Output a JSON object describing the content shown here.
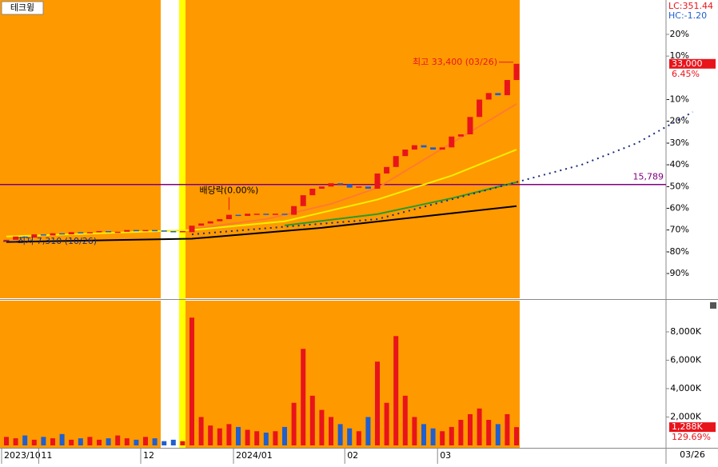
{
  "tab_title": "테크윙",
  "header": {
    "lc": "LC:351.44",
    "hc": "HC:-1.20"
  },
  "date_label": "03/26",
  "chart_data": {
    "type": "candlestick",
    "categories": [
      null,
      null,
      null,
      null,
      null,
      null,
      null,
      null,
      null,
      null,
      null,
      null,
      null,
      null,
      null,
      null,
      null,
      null,
      null,
      null,
      null,
      null,
      null,
      null,
      null,
      null,
      null,
      null,
      null,
      null,
      null,
      null,
      null,
      null,
      null,
      null,
      null,
      null,
      null,
      null,
      null,
      null,
      null,
      null,
      null,
      null,
      null,
      null,
      null,
      null,
      null,
      null,
      null,
      null,
      null,
      null
    ],
    "open": [
      -75,
      -74.5,
      -73,
      -73.5,
      -72,
      -72.5,
      -71.5,
      -72,
      -71,
      -71.5,
      -71,
      -70.5,
      -71,
      -70.8,
      -70,
      -70.5,
      -70,
      -70.2,
      -70.5,
      -71,
      -71,
      -68,
      -67,
      -66,
      -65,
      -63,
      -63.5,
      -62.5,
      -62.5,
      -63,
      -62.5,
      -63,
      -59,
      -54,
      -51,
      -50,
      -48.5,
      -49,
      -50.5,
      -50,
      -51,
      -44,
      -41,
      -36,
      -33,
      -31,
      -32,
      -33,
      -32,
      -27,
      -26,
      -18,
      -10,
      -7,
      -8,
      -1
    ],
    "close": [
      -74.5,
      -73,
      -73.5,
      -72,
      -72.5,
      -71.5,
      -72,
      -71,
      -71.5,
      -71,
      -70.5,
      -71,
      -70.8,
      -70,
      -70.5,
      -70,
      -70.2,
      -70.5,
      -71,
      -70.5,
      -68,
      -67,
      -66,
      -65,
      -63,
      -63.5,
      -62.5,
      -62.5,
      -63,
      -62.5,
      -63,
      -59,
      -54,
      -51,
      -50,
      -48.5,
      -49,
      -50.5,
      -50,
      -51,
      -44,
      -41,
      -36,
      -33,
      -31,
      -32,
      -33,
      -32,
      -27,
      -26,
      -18,
      -10,
      -7,
      -8,
      -1,
      6.45
    ],
    "up_color": "#e8141b",
    "down_color": "#1f5fd0",
    "ylim": [
      -101.4,
      35.8
    ],
    "yticks": [
      {
        "value": 20,
        "label": "20%"
      },
      {
        "value": 10,
        "label": "10%"
      },
      {
        "value": -10,
        "label": "-10%"
      },
      {
        "value": -20,
        "label": "-20%"
      },
      {
        "value": -30,
        "label": "-30%"
      },
      {
        "value": -40,
        "label": "-40%"
      },
      {
        "value": -50,
        "label": "-50%"
      },
      {
        "value": -60,
        "label": "-60%"
      },
      {
        "value": -70,
        "label": "-70%"
      },
      {
        "value": -80,
        "label": "-80%"
      },
      {
        "value": -90,
        "label": "-90%"
      }
    ],
    "xticks": [
      {
        "value": 0,
        "label": "2023/10"
      },
      {
        "value": 4,
        "label": "11"
      },
      {
        "value": 15,
        "label": "12"
      },
      {
        "value": 25,
        "label": "2024/01"
      },
      {
        "value": 37,
        "label": "02"
      },
      {
        "value": 47,
        "label": "03"
      }
    ],
    "lines": [
      {
        "color": "#ff7a30",
        "dash": false,
        "x": [
          20,
          28,
          35,
          40,
          45,
          50,
          55
        ],
        "values": [
          -69.5,
          -65,
          -58,
          -50.6,
          -37.7,
          -24.9,
          -12
        ]
      },
      {
        "color": "#f5f000",
        "dash": false,
        "x": [
          0,
          20,
          30,
          40,
          48,
          55
        ],
        "values": [
          -73,
          -70,
          -66,
          -56,
          -45,
          -33
        ]
      },
      {
        "color": "#2a9a2a",
        "dash": false,
        "x": [
          30,
          40,
          48,
          55
        ],
        "values": [
          -67.9,
          -62.7,
          -55.4,
          -48
        ]
      },
      {
        "color": "#000000",
        "dash": false,
        "x": [
          0,
          20,
          34,
          44,
          55
        ],
        "values": [
          -75.5,
          -74,
          -69,
          -64.2,
          -59
        ]
      },
      {
        "color": "#1a2a80",
        "dash": true,
        "x": [
          20,
          40,
          55,
          62,
          68,
          74
        ],
        "values": [
          -72,
          -65,
          -48,
          -40,
          -30,
          -15.7
        ]
      }
    ],
    "reference_line": {
      "value": -49.07,
      "label": "15,789",
      "color": "#800080"
    },
    "last_price": {
      "value": 6.45,
      "label": "33,000",
      "pct_label": "6.45%"
    },
    "high_note": "최고 33,400 (03/26)",
    "low_note": "최저 7,310 (10/26)",
    "dividend_note": "배당락(0.00%)",
    "volume": {
      "values": [
        600,
        500,
        700,
        400,
        600,
        500,
        800,
        400,
        500,
        600,
        400,
        500,
        700,
        500,
        400,
        600,
        500,
        300,
        400,
        300,
        9000,
        2000,
        1400,
        1200,
        1500,
        1300,
        1100,
        1000,
        900,
        1000,
        1300,
        3000,
        6800,
        3500,
        2500,
        2000,
        1500,
        1200,
        1000,
        2000,
        5900,
        3000,
        7700,
        3500,
        2000,
        1500,
        1200,
        1000,
        1300,
        1800,
        2200,
        2600,
        1800,
        1500,
        2200,
        1288
      ],
      "ylim": [
        0,
        10250
      ],
      "yticks": [
        {
          "value": 2000,
          "label": "2,000K"
        },
        {
          "value": 4000,
          "label": "4,000K"
        },
        {
          "value": 6000,
          "label": "6,000K"
        },
        {
          "value": 8000,
          "label": "8,000K"
        }
      ],
      "last": {
        "value": 1288,
        "label": "1,288K",
        "pct_label": "129.69%"
      }
    }
  }
}
